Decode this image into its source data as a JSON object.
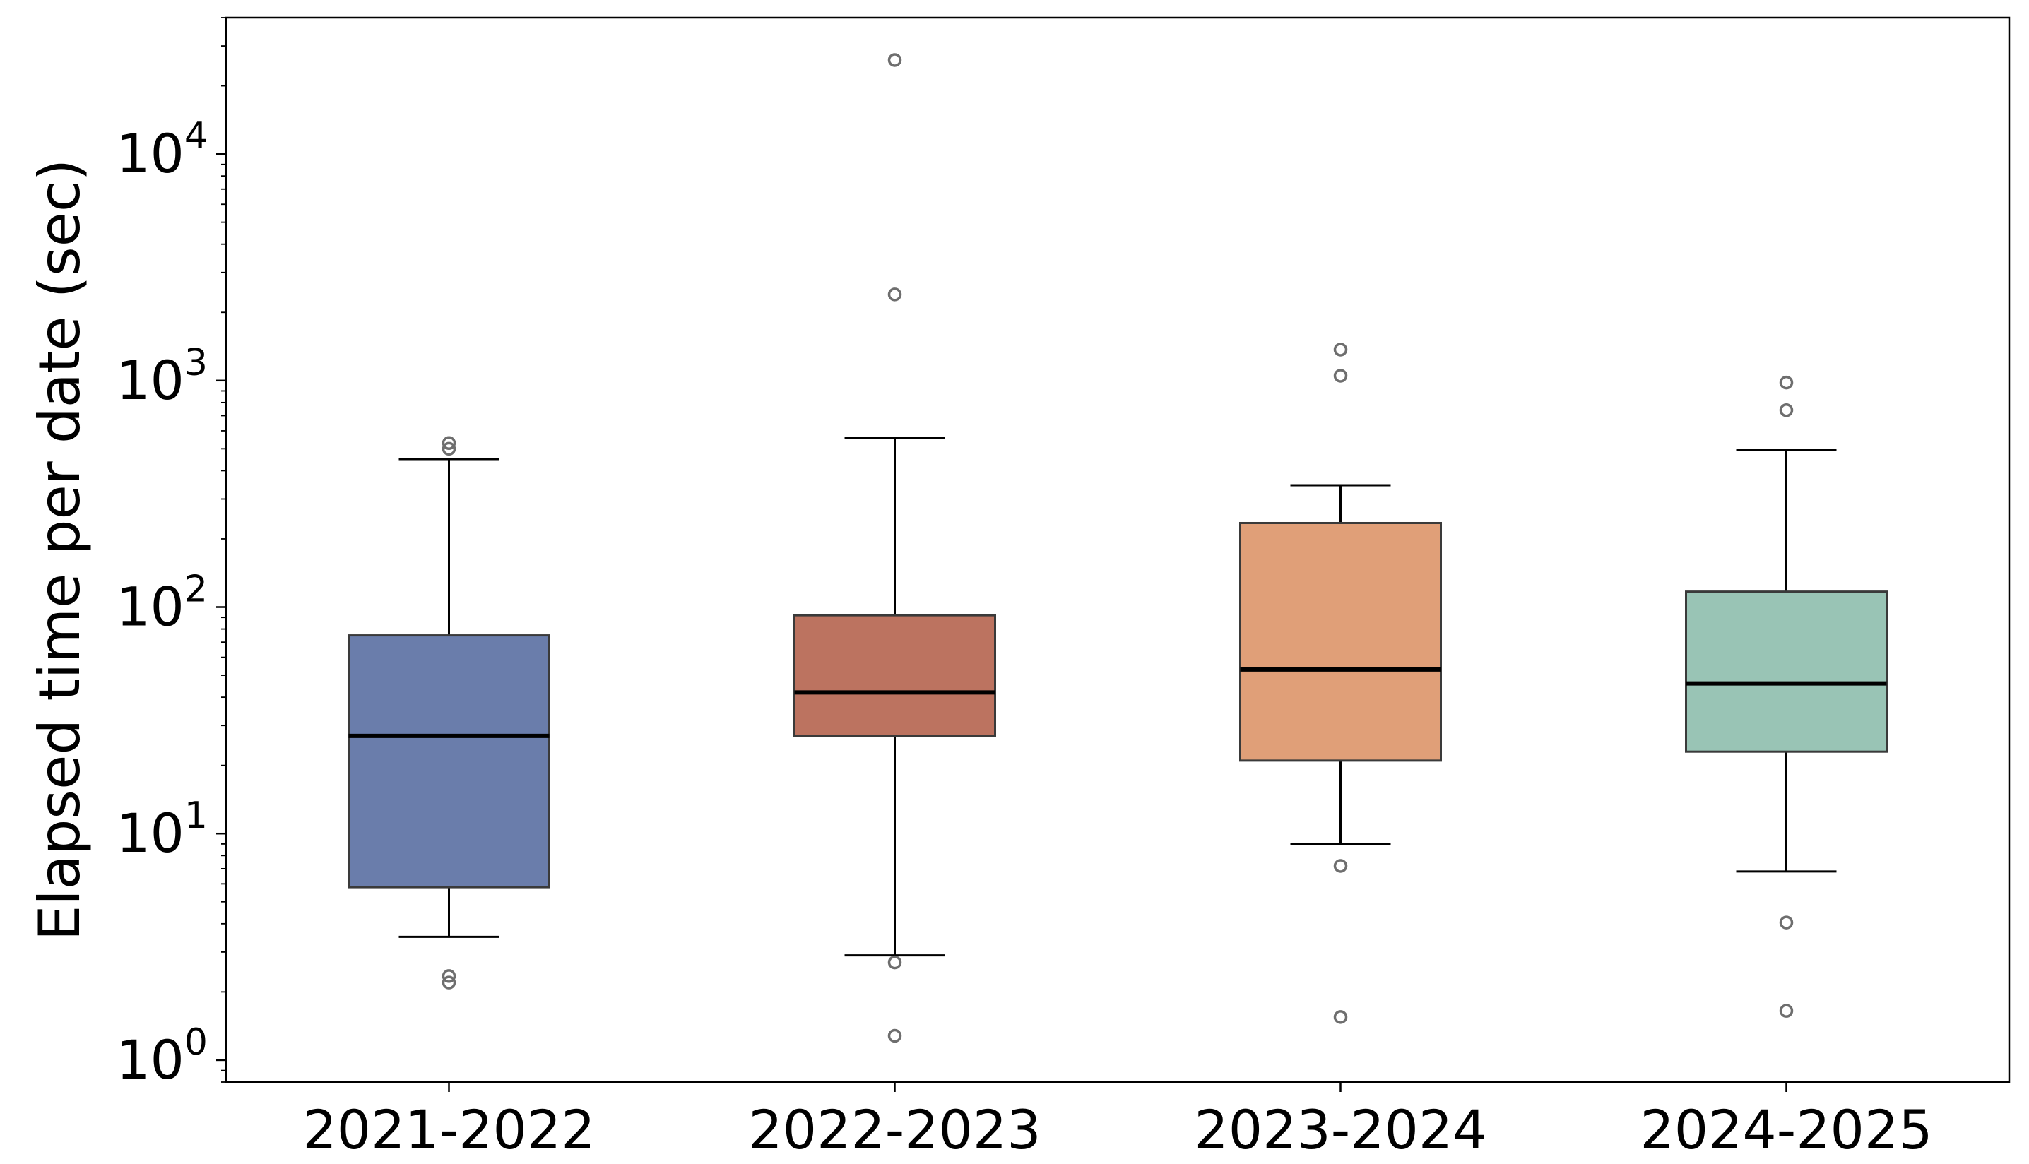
{
  "chart_data": {
    "type": "box",
    "ylabel": "Elapsed time per date (sec)",
    "yscale": "log",
    "ylim": [
      0.8,
      40000
    ],
    "grid": false,
    "y_ticks": [
      {
        "value": 1,
        "base": "10",
        "exp": "0"
      },
      {
        "value": 10,
        "base": "10",
        "exp": "1"
      },
      {
        "value": 100,
        "base": "10",
        "exp": "2"
      },
      {
        "value": 1000,
        "base": "10",
        "exp": "3"
      },
      {
        "value": 10000,
        "base": "10",
        "exp": "4"
      }
    ],
    "categories": [
      "2021-2022",
      "2022-2023",
      "2023-2024",
      "2024-2025"
    ],
    "boxes": [
      {
        "category": "2021-2022",
        "whisker_low": 3.5,
        "q1": 5.8,
        "median": 27,
        "q3": 75,
        "whisker_high": 450,
        "outliers": [
          2.2,
          2.35,
          500,
          530
        ],
        "color": "#6a7dab"
      },
      {
        "category": "2022-2023",
        "whisker_low": 2.9,
        "q1": 27,
        "median": 42,
        "q3": 92,
        "whisker_high": 560,
        "outliers": [
          1.28,
          2.7,
          2400,
          26000
        ],
        "color": "#bc7360"
      },
      {
        "category": "2023-2024",
        "whisker_low": 9,
        "q1": 21,
        "median": 53,
        "q3": 235,
        "whisker_high": 345,
        "outliers": [
          1.55,
          7.2,
          1050,
          1370
        ],
        "color": "#e09f78"
      },
      {
        "category": "2024-2025",
        "whisker_low": 6.8,
        "q1": 23,
        "median": 46,
        "q3": 117,
        "whisker_high": 495,
        "outliers": [
          1.65,
          4.05,
          740,
          980
        ],
        "color": "#99c4b5"
      }
    ]
  }
}
